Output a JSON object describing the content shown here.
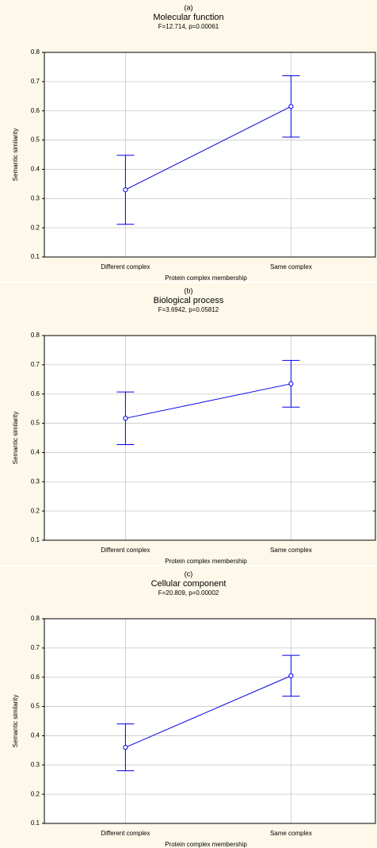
{
  "chart_data": [
    {
      "type": "line",
      "label": "(a)",
      "title": "Molecular function",
      "subtitle": "F=12.714, p=0.00061",
      "x_label": "Protein complex membership",
      "y_label": "Semantic similarity",
      "categories": [
        "Different complex",
        "Same complex"
      ],
      "values": [
        0.33,
        0.615
      ],
      "errors": [
        0.118,
        0.105
      ],
      "color": "#0000e6",
      "ylim": [
        0.1,
        0.8
      ],
      "yticks": [
        0.1,
        0.2,
        0.3,
        0.4,
        0.5,
        0.6,
        0.7,
        0.8
      ],
      "grid": true
    },
    {
      "type": "line",
      "label": "(b)",
      "title": "Biological process",
      "subtitle": "F=3.6942, p=0.05812",
      "x_label": "Protein complex membership",
      "y_label": "Semantic similarity",
      "categories": [
        "Different complex",
        "Same complex"
      ],
      "values": [
        0.517,
        0.635
      ],
      "errors": [
        0.09,
        0.08
      ],
      "color": "#0000e6",
      "ylim": [
        0.1,
        0.8
      ],
      "yticks": [
        0.1,
        0.2,
        0.3,
        0.4,
        0.5,
        0.6,
        0.7,
        0.8
      ],
      "grid": true
    },
    {
      "type": "line",
      "label": "(c)",
      "title": "Cellular component",
      "subtitle": "F=20.809, p=0.00002",
      "x_label": "Protein complex membership",
      "y_label": "Semantic similarity",
      "categories": [
        "Different complex",
        "Same complex"
      ],
      "values": [
        0.36,
        0.605
      ],
      "errors": [
        0.08,
        0.07
      ],
      "color": "#0000e6",
      "ylim": [
        0.1,
        0.8
      ],
      "yticks": [
        0.1,
        0.2,
        0.3,
        0.4,
        0.5,
        0.6,
        0.7,
        0.8
      ],
      "grid": true
    }
  ]
}
